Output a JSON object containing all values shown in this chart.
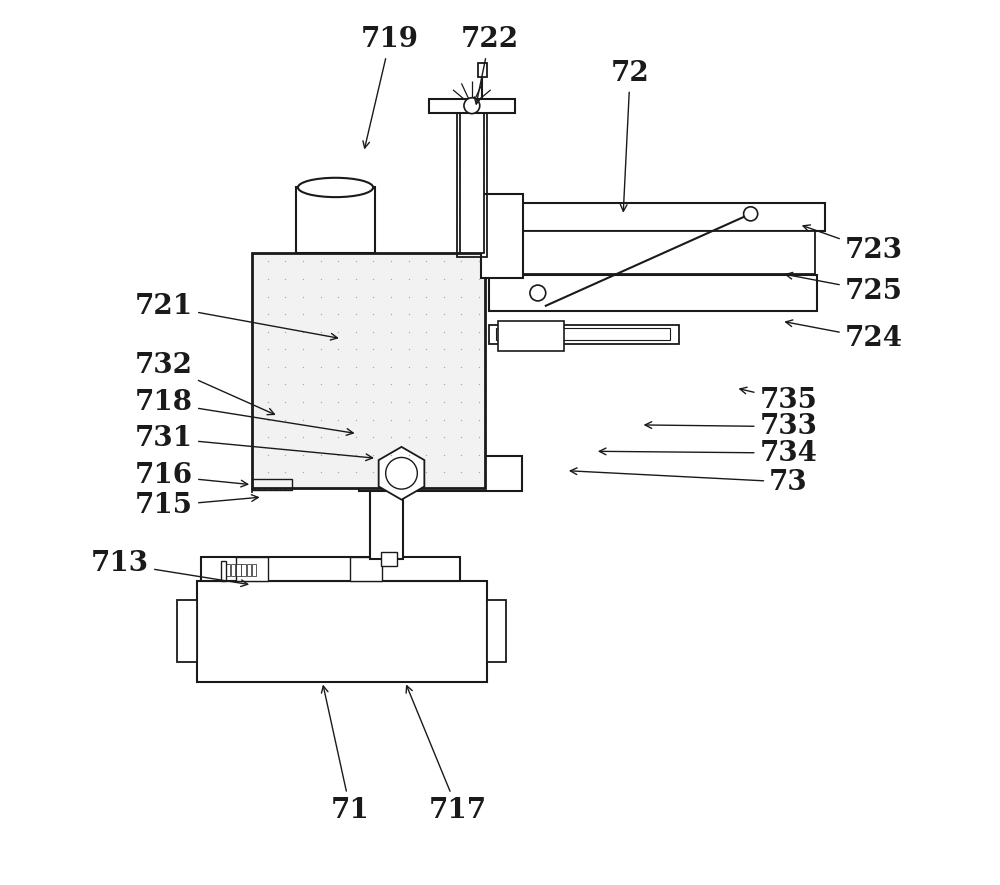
{
  "bg_color": "#ffffff",
  "line_color": "#1a1a1a",
  "fig_width": 10.0,
  "fig_height": 8.85,
  "labels_data": {
    "719": [
      0.375,
      0.958,
      0.345,
      0.83
    ],
    "722": [
      0.488,
      0.958,
      0.472,
      0.88
    ],
    "72": [
      0.648,
      0.92,
      0.64,
      0.758
    ],
    "723": [
      0.925,
      0.718,
      0.84,
      0.748
    ],
    "725": [
      0.925,
      0.672,
      0.82,
      0.692
    ],
    "724": [
      0.925,
      0.618,
      0.82,
      0.638
    ],
    "735": [
      0.828,
      0.548,
      0.768,
      0.562
    ],
    "733": [
      0.828,
      0.518,
      0.66,
      0.52
    ],
    "734": [
      0.828,
      0.488,
      0.608,
      0.49
    ],
    "73": [
      0.828,
      0.455,
      0.575,
      0.468
    ],
    "721": [
      0.118,
      0.655,
      0.32,
      0.618
    ],
    "732": [
      0.118,
      0.588,
      0.248,
      0.53
    ],
    "718": [
      0.118,
      0.545,
      0.338,
      0.51
    ],
    "731": [
      0.118,
      0.505,
      0.36,
      0.482
    ],
    "716": [
      0.118,
      0.462,
      0.218,
      0.452
    ],
    "715": [
      0.118,
      0.428,
      0.23,
      0.438
    ],
    "713": [
      0.068,
      0.362,
      0.218,
      0.338
    ],
    "71": [
      0.33,
      0.082,
      0.298,
      0.228
    ],
    "717": [
      0.452,
      0.082,
      0.392,
      0.228
    ]
  }
}
